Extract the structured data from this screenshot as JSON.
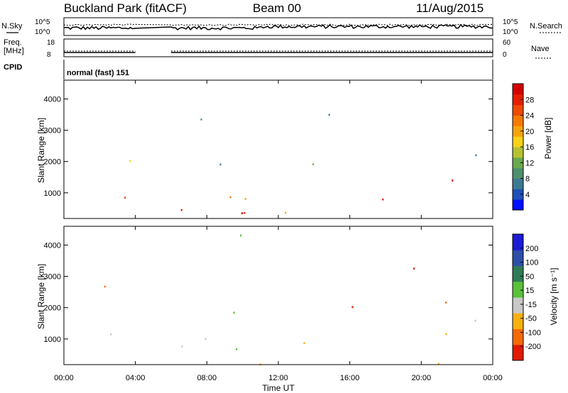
{
  "header": {
    "station": "Buckland Park (fitACF)",
    "beam": "Beam 00",
    "date": "11/Aug/2015"
  },
  "aux_panels": {
    "nsky_label": "N.Sky",
    "nsky_ticks": [
      "10^5",
      "10^0"
    ],
    "nsearch_label": "N.Search",
    "nsearch_ticks": [
      "10^5",
      "10^0"
    ],
    "freq_label": "Freq.",
    "freq_unit": "[MHz]",
    "freq_ticks": [
      "18",
      "8"
    ],
    "nave_label": "Nave",
    "nave_ticks": [
      "60",
      "0"
    ],
    "cpid_label": "CPID",
    "cpid_value": "normal (fast) 151"
  },
  "chart_data": [
    {
      "type": "heatmap",
      "title": "",
      "xlabel": "Time UT",
      "ylabel": "Slant Range [km]",
      "x_range_hours": [
        0,
        24
      ],
      "ylim": [
        180,
        4600
      ],
      "x_tick_labels": [
        "00:00",
        "04:00",
        "08:00",
        "12:00",
        "16:00",
        "20:00",
        "00:00"
      ],
      "y_tick_labels": [
        "1000",
        "2000",
        "3000",
        "4000"
      ],
      "y_ticks": [
        1000,
        2000,
        3000,
        4000
      ],
      "data_gap_hours": [
        4.0,
        6.0
      ],
      "colorbar": {
        "label": "Power [dB]",
        "ticks": [
          "4",
          "8",
          "12",
          "16",
          "20",
          "24",
          "28"
        ],
        "tick_values": [
          4,
          8,
          12,
          16,
          20,
          24,
          28
        ],
        "range": [
          0,
          32
        ],
        "colors": [
          "#0010ff",
          "#1f4fb6",
          "#3c7a94",
          "#4f8f6c",
          "#6ca84e",
          "#b6c232",
          "#f7d218",
          "#f7a40c",
          "#f57a06",
          "#f04a04",
          "#e61e02",
          "#d40000"
        ]
      },
      "grid": false
    },
    {
      "type": "heatmap",
      "title": "",
      "xlabel": "Time UT",
      "ylabel": "Slant Range [km]",
      "x_range_hours": [
        0,
        24
      ],
      "ylim": [
        180,
        4600
      ],
      "x_tick_labels": [
        "00:00",
        "04:00",
        "08:00",
        "12:00",
        "16:00",
        "20:00",
        "00:00"
      ],
      "y_tick_labels": [
        "1000",
        "2000",
        "3000",
        "4000"
      ],
      "y_ticks": [
        1000,
        2000,
        3000,
        4000
      ],
      "data_gap_hours": [
        4.0,
        6.0
      ],
      "colorbar": {
        "label": "Velocity [m s⁻¹]",
        "ticks": [
          "200",
          "100",
          "50",
          "15",
          "-15",
          "-50",
          "-100",
          "-200"
        ],
        "colors": [
          "#1c1cd6",
          "#2d4fa8",
          "#2f7a56",
          "#5ac23a",
          "#c8c8c8",
          "#f7b012",
          "#f56a06",
          "#e21a00"
        ]
      },
      "grid": false
    }
  ]
}
